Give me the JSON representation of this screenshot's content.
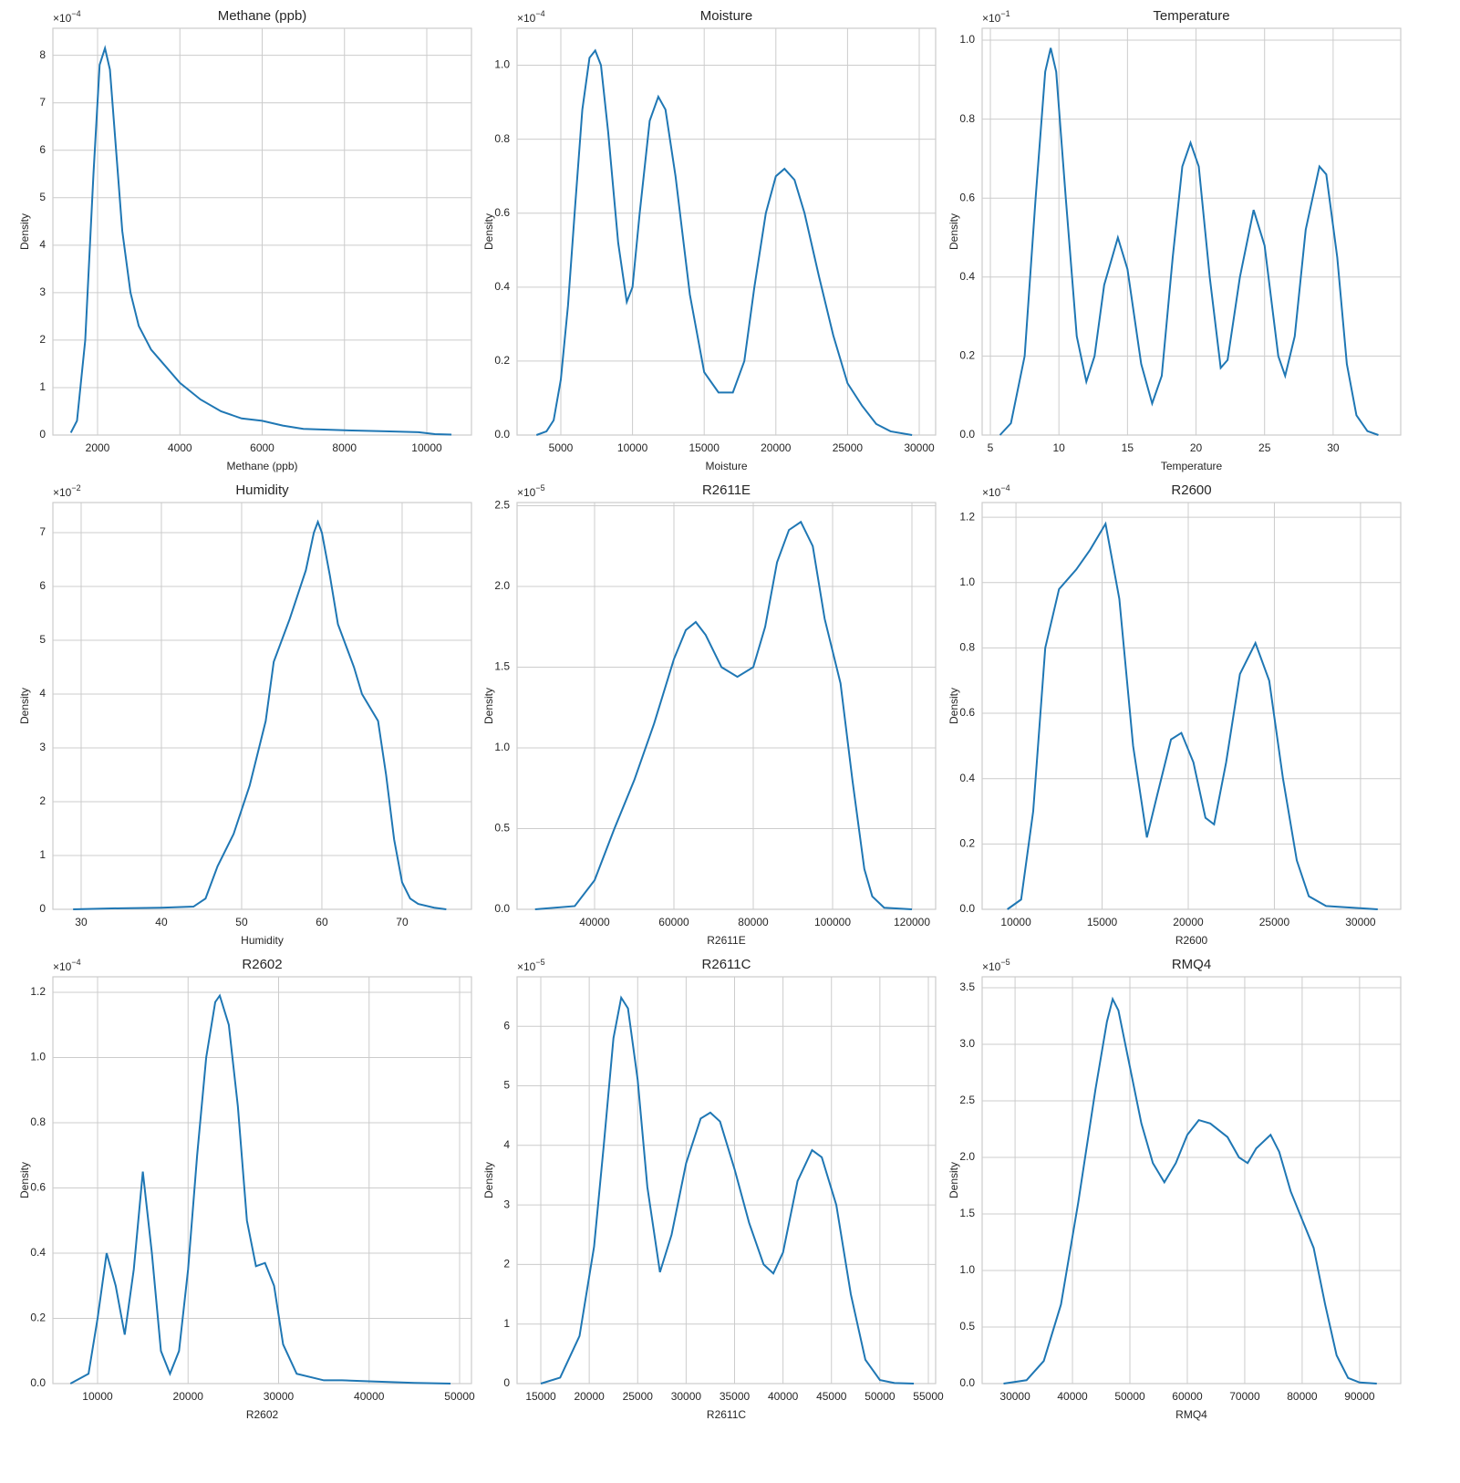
{
  "chart_data": [
    {
      "type": "line",
      "title": "Methane (ppb)",
      "xlabel": "Methane (ppb)",
      "ylabel": "Density",
      "y_offset": {
        "base": "×10",
        "exponent": "−4"
      },
      "color": "#1f77b4",
      "grid": true,
      "x": [
        1350,
        1500,
        1700,
        1900,
        2050,
        2180,
        2300,
        2450,
        2600,
        2800,
        3000,
        3300,
        3600,
        4000,
        4500,
        5000,
        5500,
        6000,
        6500,
        7000,
        8000,
        9000,
        9800,
        10200,
        10600
      ],
      "values": [
        0.05,
        0.3,
        2,
        5.5,
        7.8,
        8.15,
        7.7,
        6,
        4.3,
        3,
        2.3,
        1.8,
        1.5,
        1.1,
        0.75,
        0.5,
        0.35,
        0.3,
        0.2,
        0.13,
        0.1,
        0.08,
        0.06,
        0.02,
        0.01
      ],
      "xlim": [
        914,
        11086
      ],
      "ylim": [
        0,
        8.57
      ],
      "xticks": [
        2000,
        4000,
        6000,
        8000,
        10000
      ],
      "yticks": [
        0,
        1,
        2,
        3,
        4,
        5,
        6,
        7,
        8
      ]
    },
    {
      "type": "line",
      "title": "Moisture",
      "xlabel": "Moisture",
      "ylabel": "Density",
      "y_offset": {
        "base": "×10",
        "exponent": "−4"
      },
      "color": "#1f77b4",
      "grid": true,
      "x": [
        3300,
        4000,
        4500,
        5000,
        5500,
        6000,
        6500,
        7000,
        7400,
        7800,
        8300,
        9000,
        9600,
        10000,
        10500,
        11200,
        11800,
        12300,
        13000,
        14000,
        15000,
        16000,
        17000,
        17800,
        18500,
        19300,
        20000,
        20600,
        21300,
        22000,
        23000,
        24000,
        25000,
        26000,
        27000,
        28000,
        29500
      ],
      "values": [
        0,
        0.01,
        0.04,
        0.15,
        0.35,
        0.62,
        0.88,
        1.02,
        1.04,
        1.0,
        0.82,
        0.52,
        0.36,
        0.4,
        0.6,
        0.85,
        0.915,
        0.88,
        0.7,
        0.38,
        0.17,
        0.115,
        0.115,
        0.2,
        0.4,
        0.6,
        0.7,
        0.72,
        0.69,
        0.6,
        0.43,
        0.27,
        0.14,
        0.08,
        0.03,
        0.01,
        0
      ],
      "xlim": [
        1947,
        31145
      ],
      "ylim": [
        0,
        1.1
      ],
      "xticks": [
        5000,
        10000,
        15000,
        20000,
        25000,
        30000
      ],
      "yticks": [
        {
          "value": 0,
          "label": "0.0"
        },
        0.2,
        0.4,
        0.6,
        0.8,
        {
          "value": 1,
          "label": "1.0"
        }
      ]
    },
    {
      "type": "line",
      "title": "Temperature",
      "xlabel": "Temperature",
      "ylabel": "Density",
      "y_offset": {
        "base": "×10",
        "exponent": "−1"
      },
      "color": "#1f77b4",
      "grid": true,
      "x": [
        5.7,
        6.5,
        7.5,
        8.3,
        9,
        9.4,
        9.8,
        10.5,
        11.3,
        12,
        12.6,
        13.3,
        14.3,
        15,
        16,
        16.8,
        17.5,
        18.3,
        19,
        19.6,
        20.2,
        21,
        21.8,
        22.3,
        23.2,
        24.2,
        25,
        26,
        26.5,
        27.2,
        28,
        29,
        29.5,
        30.3,
        31,
        31.7,
        32.5,
        33.3
      ],
      "values": [
        0,
        0.03,
        0.2,
        0.6,
        0.92,
        0.98,
        0.92,
        0.6,
        0.25,
        0.135,
        0.2,
        0.38,
        0.5,
        0.42,
        0.18,
        0.08,
        0.15,
        0.45,
        0.68,
        0.74,
        0.68,
        0.4,
        0.17,
        0.19,
        0.4,
        0.57,
        0.48,
        0.2,
        0.15,
        0.25,
        0.52,
        0.68,
        0.66,
        0.45,
        0.18,
        0.05,
        0.01,
        0
      ],
      "xlim": [
        4.4,
        34.93
      ],
      "ylim": [
        0,
        1.03
      ],
      "xticks": [
        5,
        10,
        15,
        20,
        25,
        30
      ],
      "yticks": [
        {
          "value": 0,
          "label": "0.0"
        },
        0.2,
        0.4,
        0.6,
        0.8,
        {
          "value": 1,
          "label": "1.0"
        }
      ]
    },
    {
      "type": "line",
      "title": "Humidity",
      "xlabel": "Humidity",
      "ylabel": "Density",
      "y_offset": {
        "base": "×10",
        "exponent": "−2"
      },
      "color": "#1f77b4",
      "grid": true,
      "x": [
        29,
        35,
        40,
        44,
        45.5,
        47,
        49,
        51,
        53,
        54,
        56,
        58,
        59,
        59.5,
        60,
        61,
        62,
        64,
        65,
        67,
        68,
        69,
        70,
        71,
        72,
        74,
        75.5
      ],
      "values": [
        0,
        0.02,
        0.03,
        0.05,
        0.2,
        0.8,
        1.4,
        2.3,
        3.5,
        4.6,
        5.4,
        6.3,
        7.0,
        7.2,
        7.0,
        6.2,
        5.3,
        4.5,
        4.0,
        3.5,
        2.5,
        1.3,
        0.5,
        0.2,
        0.1,
        0.03,
        0
      ],
      "xlim": [
        26.48,
        78.64
      ],
      "ylim": [
        0,
        7.56
      ],
      "xticks": [
        30,
        40,
        50,
        60,
        70
      ],
      "yticks": [
        0,
        1,
        2,
        3,
        4,
        5,
        6,
        7
      ]
    },
    {
      "type": "line",
      "title": "R2611E",
      "xlabel": "R2611E",
      "ylabel": "Density",
      "y_offset": {
        "base": "×10",
        "exponent": "−5"
      },
      "color": "#1f77b4",
      "grid": true,
      "x": [
        25000,
        35000,
        40000,
        45000,
        50000,
        55000,
        60000,
        63000,
        65500,
        68000,
        72000,
        76000,
        80000,
        83000,
        86000,
        89000,
        92000,
        95000,
        98000,
        102000,
        105000,
        108000,
        110000,
        113000,
        120000
      ],
      "values": [
        0,
        0.02,
        0.18,
        0.5,
        0.8,
        1.15,
        1.55,
        1.73,
        1.78,
        1.7,
        1.5,
        1.44,
        1.5,
        1.75,
        2.15,
        2.35,
        2.4,
        2.25,
        1.8,
        1.4,
        0.8,
        0.25,
        0.08,
        0.01,
        0
      ],
      "xlim": [
        20460,
        125977
      ],
      "ylim": [
        0,
        2.52
      ],
      "xticks": [
        40000,
        60000,
        80000,
        100000,
        120000
      ],
      "yticks": [
        {
          "value": 0,
          "label": "0.0"
        },
        0.5,
        {
          "value": 1,
          "label": "1.0"
        },
        1.5,
        {
          "value": 2,
          "label": "2.0"
        },
        2.5
      ]
    },
    {
      "type": "line",
      "title": "R2600",
      "xlabel": "R2600",
      "ylabel": "Density",
      "y_offset": {
        "base": "×10",
        "exponent": "−4"
      },
      "color": "#1f77b4",
      "grid": true,
      "x": [
        9500,
        10300,
        11000,
        11700,
        12500,
        13500,
        14300,
        15200,
        16000,
        16800,
        17600,
        18200,
        19000,
        19600,
        20300,
        21000,
        21500,
        22200,
        23000,
        23900,
        24700,
        25500,
        26300,
        27000,
        28000,
        31000
      ],
      "values": [
        0,
        0.03,
        0.3,
        0.8,
        0.98,
        1.04,
        1.1,
        1.18,
        0.95,
        0.5,
        0.22,
        0.35,
        0.52,
        0.54,
        0.45,
        0.28,
        0.26,
        0.45,
        0.72,
        0.815,
        0.7,
        0.4,
        0.15,
        0.04,
        0.01,
        0
      ],
      "xlim": [
        8037,
        32334
      ],
      "ylim": [
        0,
        1.245
      ],
      "xticks": [
        10000,
        15000,
        20000,
        25000,
        30000
      ],
      "yticks": [
        {
          "value": 0,
          "label": "0.0"
        },
        0.2,
        0.4,
        0.6,
        0.8,
        {
          "value": 1,
          "label": "1.0"
        },
        1.2
      ]
    },
    {
      "type": "line",
      "title": "R2602",
      "xlabel": "R2602",
      "ylabel": "Density",
      "y_offset": {
        "base": "×10",
        "exponent": "−4"
      },
      "color": "#1f77b4",
      "grid": true,
      "x": [
        7000,
        9000,
        10000,
        11000,
        12000,
        13000,
        14000,
        15000,
        16000,
        17000,
        18000,
        19000,
        20000,
        21000,
        22000,
        23000,
        23500,
        24500,
        25500,
        26500,
        27500,
        28500,
        29500,
        30500,
        32000,
        35000,
        37000,
        40000,
        45000,
        49000
      ],
      "values": [
        0,
        0.03,
        0.2,
        0.4,
        0.3,
        0.15,
        0.35,
        0.65,
        0.4,
        0.1,
        0.03,
        0.1,
        0.35,
        0.7,
        1.0,
        1.17,
        1.19,
        1.1,
        0.85,
        0.5,
        0.36,
        0.37,
        0.3,
        0.12,
        0.03,
        0.01,
        0.01,
        0.007,
        0.002,
        0
      ],
      "xlim": [
        5063,
        51310
      ],
      "ylim": [
        0,
        1.2476
      ],
      "xticks": [
        10000,
        20000,
        30000,
        40000,
        50000
      ],
      "yticks": [
        {
          "value": 0,
          "label": "0.0"
        },
        0.2,
        0.4,
        0.6,
        0.8,
        {
          "value": 1,
          "label": "1.0"
        },
        1.2
      ]
    },
    {
      "type": "line",
      "title": "R2611C",
      "xlabel": "R2611C",
      "ylabel": "Density",
      "y_offset": {
        "base": "×10",
        "exponent": "−5"
      },
      "color": "#1f77b4",
      "grid": true,
      "x": [
        15000,
        17000,
        19000,
        20500,
        21500,
        22500,
        23300,
        24000,
        25000,
        26000,
        27300,
        28500,
        30000,
        31500,
        32500,
        33500,
        35000,
        36500,
        38000,
        39000,
        40000,
        41500,
        43000,
        44000,
        45500,
        47000,
        48500,
        50000,
        51500,
        53500
      ],
      "values": [
        0,
        0.1,
        0.8,
        2.3,
        4,
        5.8,
        6.48,
        6.3,
        5.1,
        3.3,
        1.87,
        2.5,
        3.7,
        4.45,
        4.55,
        4.4,
        3.6,
        2.7,
        2.0,
        1.85,
        2.2,
        3.4,
        3.92,
        3.8,
        3.0,
        1.5,
        0.4,
        0.06,
        0.01,
        0
      ],
      "xlim": [
        12552,
        55753
      ],
      "ylim": [
        0,
        6.83
      ],
      "xticks": [
        15000,
        20000,
        25000,
        30000,
        35000,
        40000,
        45000,
        50000,
        55000
      ],
      "yticks": [
        0,
        1,
        2,
        3,
        4,
        5,
        6
      ]
    },
    {
      "type": "line",
      "title": "RMQ4",
      "xlabel": "RMQ4",
      "ylabel": "Density",
      "y_offset": {
        "base": "×10",
        "exponent": "−5"
      },
      "color": "#1f77b4",
      "grid": true,
      "x": [
        28000,
        32000,
        35000,
        38000,
        41000,
        44000,
        46000,
        47000,
        48000,
        50000,
        52000,
        54000,
        56000,
        58000,
        60000,
        62000,
        64000,
        67000,
        69000,
        70500,
        72000,
        74500,
        76000,
        78000,
        80000,
        82000,
        84000,
        86000,
        88000,
        90000,
        93000
      ],
      "values": [
        0,
        0.03,
        0.2,
        0.7,
        1.6,
        2.6,
        3.2,
        3.4,
        3.3,
        2.8,
        2.3,
        1.95,
        1.78,
        1.95,
        2.2,
        2.33,
        2.3,
        2.18,
        2.0,
        1.95,
        2.08,
        2.2,
        2.05,
        1.7,
        1.45,
        1.2,
        0.7,
        0.25,
        0.05,
        0.01,
        0
      ],
      "xlim": [
        24268,
        97166
      ],
      "ylim": [
        0,
        3.597
      ],
      "xticks": [
        30000,
        40000,
        50000,
        60000,
        70000,
        80000,
        90000
      ],
      "yticks": [
        {
          "value": 0,
          "label": "0.0"
        },
        0.5,
        {
          "value": 1,
          "label": "1.0"
        },
        1.5,
        {
          "value": 2,
          "label": "2.0"
        },
        2.5,
        {
          "value": 3,
          "label": "3.0"
        },
        3.5
      ]
    }
  ]
}
